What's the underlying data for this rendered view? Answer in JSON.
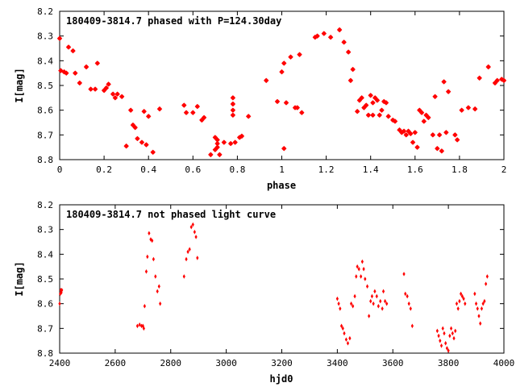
{
  "chart_data": [
    {
      "type": "scatter",
      "title": "180409-3814.7 phased with P=124.30day",
      "xlabel": "phase",
      "ylabel": "I[mag]",
      "xlim": [
        0,
        2
      ],
      "ylim": [
        8.2,
        8.8
      ],
      "y_inverted": true,
      "xticks": [
        "0",
        "0.2",
        "0.4",
        "0.6",
        "0.8",
        "1",
        "1.2",
        "1.4",
        "1.6",
        "1.8",
        "2"
      ],
      "yticks": [
        "8.2",
        "8.3",
        "8.4",
        "8.5",
        "8.6",
        "8.7",
        "8.8"
      ],
      "marker_color": "#ff0000",
      "points": [
        [
          0.0,
          8.31
        ],
        [
          0.005,
          8.44
        ],
        [
          0.02,
          8.445
        ],
        [
          0.03,
          8.45
        ],
        [
          0.04,
          8.345
        ],
        [
          0.06,
          8.36
        ],
        [
          0.07,
          8.45
        ],
        [
          0.09,
          8.49
        ],
        [
          0.12,
          8.425
        ],
        [
          0.14,
          8.515
        ],
        [
          0.16,
          8.515
        ],
        [
          0.17,
          8.41
        ],
        [
          0.2,
          8.52
        ],
        [
          0.21,
          8.51
        ],
        [
          0.22,
          8.495
        ],
        [
          0.24,
          8.535
        ],
        [
          0.25,
          8.55
        ],
        [
          0.26,
          8.535
        ],
        [
          0.28,
          8.545
        ],
        [
          0.3,
          8.745
        ],
        [
          0.32,
          8.6
        ],
        [
          0.33,
          8.66
        ],
        [
          0.34,
          8.67
        ],
        [
          0.35,
          8.715
        ],
        [
          0.37,
          8.73
        ],
        [
          0.38,
          8.605
        ],
        [
          0.39,
          8.74
        ],
        [
          0.4,
          8.625
        ],
        [
          0.42,
          8.77
        ],
        [
          0.45,
          8.595
        ],
        [
          0.56,
          8.58
        ],
        [
          0.57,
          8.61
        ],
        [
          0.6,
          8.61
        ],
        [
          0.62,
          8.585
        ],
        [
          0.64,
          8.64
        ],
        [
          0.65,
          8.63
        ],
        [
          0.68,
          8.78
        ],
        [
          0.7,
          8.76
        ],
        [
          0.7,
          8.71
        ],
        [
          0.71,
          8.72
        ],
        [
          0.71,
          8.735
        ],
        [
          0.71,
          8.75
        ],
        [
          0.72,
          8.78
        ],
        [
          0.74,
          8.73
        ],
        [
          0.77,
          8.735
        ],
        [
          0.78,
          8.55
        ],
        [
          0.78,
          8.575
        ],
        [
          0.78,
          8.6
        ],
        [
          0.78,
          8.62
        ],
        [
          0.79,
          8.73
        ],
        [
          0.81,
          8.71
        ],
        [
          0.82,
          8.705
        ],
        [
          0.85,
          8.625
        ],
        [
          0.93,
          8.48
        ],
        [
          0.98,
          8.565
        ],
        [
          1.0,
          8.445
        ],
        [
          1.01,
          8.41
        ],
        [
          1.01,
          8.755
        ],
        [
          1.02,
          8.57
        ],
        [
          1.04,
          8.385
        ],
        [
          1.06,
          8.59
        ],
        [
          1.07,
          8.59
        ],
        [
          1.08,
          8.375
        ],
        [
          1.09,
          8.61
        ],
        [
          1.15,
          8.305
        ],
        [
          1.16,
          8.3
        ],
        [
          1.19,
          8.29
        ],
        [
          1.22,
          8.305
        ],
        [
          1.26,
          8.275
        ],
        [
          1.28,
          8.325
        ],
        [
          1.3,
          8.365
        ],
        [
          1.31,
          8.48
        ],
        [
          1.32,
          8.435
        ],
        [
          1.34,
          8.605
        ],
        [
          1.35,
          8.56
        ],
        [
          1.36,
          8.55
        ],
        [
          1.37,
          8.59
        ],
        [
          1.38,
          8.58
        ],
        [
          1.39,
          8.62
        ],
        [
          1.4,
          8.54
        ],
        [
          1.41,
          8.62
        ],
        [
          1.41,
          8.57
        ],
        [
          1.42,
          8.55
        ],
        [
          1.43,
          8.56
        ],
        [
          1.44,
          8.62
        ],
        [
          1.45,
          8.6
        ],
        [
          1.46,
          8.565
        ],
        [
          1.47,
          8.57
        ],
        [
          1.48,
          8.625
        ],
        [
          1.5,
          8.64
        ],
        [
          1.51,
          8.645
        ],
        [
          1.53,
          8.68
        ],
        [
          1.54,
          8.69
        ],
        [
          1.55,
          8.685
        ],
        [
          1.56,
          8.7
        ],
        [
          1.57,
          8.685
        ],
        [
          1.58,
          8.695
        ],
        [
          1.59,
          8.73
        ],
        [
          1.6,
          8.69
        ],
        [
          1.61,
          8.75
        ],
        [
          1.62,
          8.6
        ],
        [
          1.63,
          8.61
        ],
        [
          1.64,
          8.645
        ],
        [
          1.65,
          8.62
        ],
        [
          1.66,
          8.63
        ],
        [
          1.68,
          8.7
        ],
        [
          1.69,
          8.545
        ],
        [
          1.7,
          8.755
        ],
        [
          1.71,
          8.7
        ],
        [
          1.72,
          8.765
        ],
        [
          1.73,
          8.485
        ],
        [
          1.74,
          8.69
        ],
        [
          1.75,
          8.525
        ],
        [
          1.78,
          8.7
        ],
        [
          1.79,
          8.72
        ],
        [
          1.81,
          8.6
        ],
        [
          1.84,
          8.59
        ],
        [
          1.87,
          8.595
        ],
        [
          1.89,
          8.47
        ],
        [
          1.93,
          8.425
        ],
        [
          1.96,
          8.49
        ],
        [
          1.97,
          8.48
        ],
        [
          1.99,
          8.475
        ],
        [
          2.0,
          8.48
        ]
      ]
    },
    {
      "type": "scatter",
      "title": "180409-3814.7 not phased light curve",
      "xlabel": "hjd0",
      "ylabel": "I[mag]",
      "xlim": [
        2400,
        4000
      ],
      "ylim": [
        8.2,
        8.8
      ],
      "y_inverted": true,
      "xticks": [
        "2400",
        "2600",
        "2800",
        "3000",
        "3200",
        "3400",
        "3600",
        "3800",
        "4000"
      ],
      "yticks": [
        "8.2",
        "8.3",
        "8.4",
        "8.5",
        "8.6",
        "8.7",
        "8.8"
      ],
      "marker_color": "#ff0000",
      "points": [
        [
          2400,
          8.6
        ],
        [
          2402,
          8.56
        ],
        [
          2404,
          8.545
        ],
        [
          2406,
          8.555
        ],
        [
          2408,
          8.545
        ],
        [
          2680,
          8.69
        ],
        [
          2688,
          8.685
        ],
        [
          2695,
          8.69
        ],
        [
          2700,
          8.69
        ],
        [
          2703,
          8.7
        ],
        [
          2706,
          8.61
        ],
        [
          2712,
          8.47
        ],
        [
          2716,
          8.41
        ],
        [
          2722,
          8.315
        ],
        [
          2728,
          8.34
        ],
        [
          2733,
          8.345
        ],
        [
          2738,
          8.42
        ],
        [
          2745,
          8.49
        ],
        [
          2752,
          8.55
        ],
        [
          2758,
          8.53
        ],
        [
          2762,
          8.6
        ],
        [
          2848,
          8.49
        ],
        [
          2856,
          8.42
        ],
        [
          2862,
          8.39
        ],
        [
          2868,
          8.38
        ],
        [
          2874,
          8.29
        ],
        [
          2880,
          8.28
        ],
        [
          2886,
          8.31
        ],
        [
          2891,
          8.33
        ],
        [
          2896,
          8.415
        ],
        [
          3400,
          8.58
        ],
        [
          3405,
          8.6
        ],
        [
          3410,
          8.62
        ],
        [
          3415,
          8.69
        ],
        [
          3420,
          8.7
        ],
        [
          3425,
          8.72
        ],
        [
          3432,
          8.745
        ],
        [
          3438,
          8.76
        ],
        [
          3445,
          8.74
        ],
        [
          3450,
          8.6
        ],
        [
          3456,
          8.61
        ],
        [
          3463,
          8.57
        ],
        [
          3468,
          8.49
        ],
        [
          3472,
          8.45
        ],
        [
          3478,
          8.46
        ],
        [
          3485,
          8.49
        ],
        [
          3490,
          8.43
        ],
        [
          3495,
          8.46
        ],
        [
          3500,
          8.5
        ],
        [
          3508,
          8.53
        ],
        [
          3514,
          8.65
        ],
        [
          3520,
          8.59
        ],
        [
          3525,
          8.57
        ],
        [
          3530,
          8.6
        ],
        [
          3535,
          8.55
        ],
        [
          3542,
          8.57
        ],
        [
          3548,
          8.61
        ],
        [
          3555,
          8.59
        ],
        [
          3562,
          8.62
        ],
        [
          3566,
          8.55
        ],
        [
          3572,
          8.59
        ],
        [
          3578,
          8.6
        ],
        [
          3640,
          8.48
        ],
        [
          3645,
          8.56
        ],
        [
          3652,
          8.57
        ],
        [
          3658,
          8.6
        ],
        [
          3664,
          8.62
        ],
        [
          3670,
          8.69
        ],
        [
          3760,
          8.71
        ],
        [
          3765,
          8.73
        ],
        [
          3770,
          8.75
        ],
        [
          3775,
          8.77
        ],
        [
          3780,
          8.7
        ],
        [
          3785,
          8.72
        ],
        [
          3790,
          8.76
        ],
        [
          3795,
          8.78
        ],
        [
          3800,
          8.79
        ],
        [
          3805,
          8.73
        ],
        [
          3810,
          8.7
        ],
        [
          3815,
          8.72
        ],
        [
          3820,
          8.74
        ],
        [
          3825,
          8.71
        ],
        [
          3830,
          8.6
        ],
        [
          3835,
          8.62
        ],
        [
          3840,
          8.59
        ],
        [
          3845,
          8.56
        ],
        [
          3850,
          8.57
        ],
        [
          3855,
          8.58
        ],
        [
          3860,
          8.6
        ],
        [
          3895,
          8.56
        ],
        [
          3900,
          8.6
        ],
        [
          3905,
          8.62
        ],
        [
          3910,
          8.65
        ],
        [
          3915,
          8.68
        ],
        [
          3920,
          8.62
        ],
        [
          3925,
          8.6
        ],
        [
          3930,
          8.59
        ],
        [
          3935,
          8.52
        ],
        [
          3940,
          8.49
        ]
      ]
    }
  ]
}
